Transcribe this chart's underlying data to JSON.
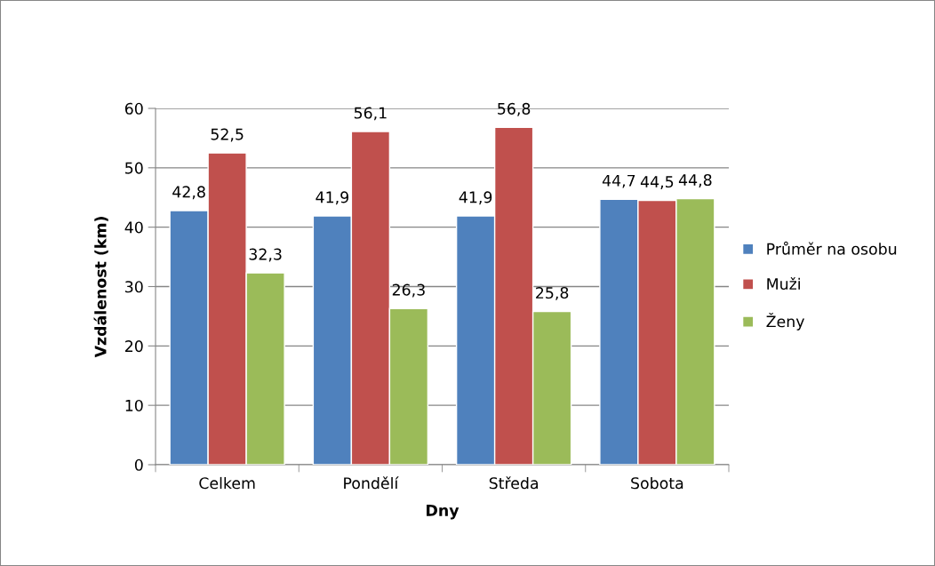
{
  "chart_data": {
    "type": "bar",
    "xlabel": "Dny",
    "ylabel": "Vzdálenost (km)",
    "categories": [
      "Celkem",
      "Pondělí",
      "Středa",
      "Sobota"
    ],
    "series": [
      {
        "name": "Průměr na osobu",
        "color": "#4f81bd",
        "values": [
          42.8,
          41.9,
          41.9,
          44.7
        ],
        "value_labels": [
          "42,8",
          "41,9",
          "41,9",
          "44,7"
        ]
      },
      {
        "name": "Muži",
        "color": "#c0504d",
        "values": [
          52.5,
          56.1,
          56.8,
          44.5
        ],
        "value_labels": [
          "52,5",
          "56,1",
          "56,8",
          "44,5"
        ]
      },
      {
        "name": "Ženy",
        "color": "#9bbb59",
        "values": [
          32.3,
          26.3,
          25.8,
          44.8
        ],
        "value_labels": [
          "32,3",
          "26,3",
          "25,8",
          "44,8"
        ]
      }
    ],
    "ylim": [
      0,
      60
    ],
    "yticks": [
      0,
      10,
      20,
      30,
      40,
      50,
      60
    ],
    "grid": "y",
    "legend": "right"
  }
}
